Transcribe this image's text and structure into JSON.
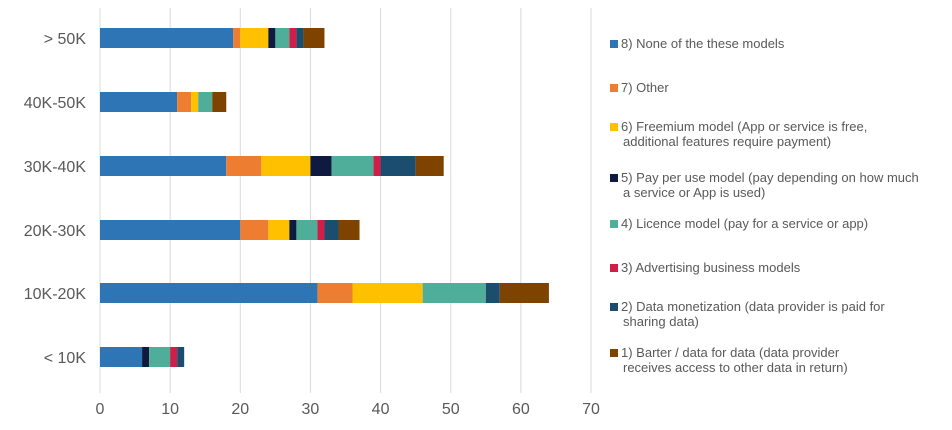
{
  "chart_data": {
    "type": "bar",
    "orientation": "horizontal",
    "stacked": true,
    "categories": [
      "> 50K",
      "40K-50K",
      "30K-40K",
      "20K-30K",
      "10K-20K",
      "< 10K"
    ],
    "series": [
      {
        "name": "8) None of the these models",
        "color": "#2E75B6",
        "values": [
          19,
          11,
          18,
          20,
          31,
          6
        ]
      },
      {
        "name": "7) Other",
        "color": "#ED7D31",
        "values": [
          1,
          2,
          5,
          4,
          5,
          0
        ]
      },
      {
        "name": "6) Freemium model (App or service is free, additional features require payment)",
        "color": "#FFC000",
        "values": [
          4,
          1,
          7,
          3,
          10,
          0
        ]
      },
      {
        "name": "5) Pay per use model (pay depending on how much a service or App is used)",
        "color": "#0E1A3F",
        "values": [
          1,
          0,
          3,
          1,
          0,
          1
        ]
      },
      {
        "name": "4) Licence model (pay for a service or app)",
        "color": "#4EAE9A",
        "values": [
          2,
          2,
          6,
          3,
          9,
          3
        ]
      },
      {
        "name": "3) Advertising business models",
        "color": "#D11E48",
        "values": [
          1,
          0,
          1,
          1,
          0,
          1
        ]
      },
      {
        "name": "2) Data monetization (data provider is paid for sharing data)",
        "color": "#1B4E6E",
        "values": [
          1,
          0,
          5,
          2,
          2,
          1
        ]
      },
      {
        "name": "1) Barter / data for data (data provider receives access to other data in return)",
        "color": "#7F4300",
        "values": [
          3,
          2,
          4,
          3,
          7,
          0
        ]
      }
    ],
    "xlim": [
      0,
      70
    ],
    "xticks": [
      0,
      10,
      20,
      30,
      40,
      50,
      60,
      70
    ],
    "grid": true,
    "legend_position": "right"
  }
}
